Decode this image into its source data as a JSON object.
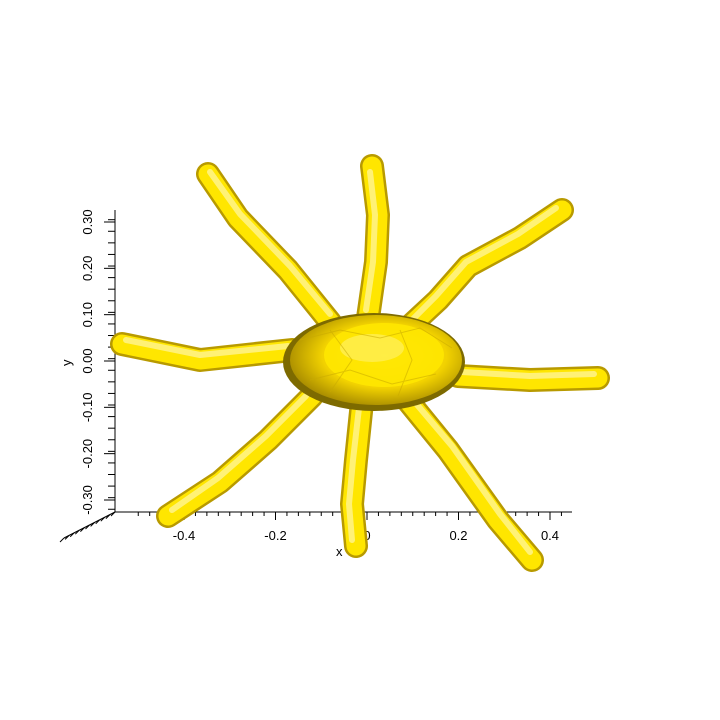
{
  "chart_data": {
    "type": "3d-isosurface",
    "surface_color": "#ffe600",
    "xlabel": "x",
    "ylabel": "y",
    "x_ticks": [
      -0.4,
      -0.2,
      0,
      0.2,
      0.4
    ],
    "x_tick_labels": [
      "-0.4",
      "-0.2",
      "0",
      "0.2",
      "0.4"
    ],
    "xlim": [
      -0.5,
      0.45
    ],
    "y_ticks": [
      -0.3,
      -0.2,
      -0.1,
      0.0,
      0.1,
      0.2,
      0.3
    ],
    "y_tick_labels": [
      "-0.30",
      "-0.20",
      "-0.10",
      "0.00",
      "0.10",
      "0.20",
      "0.30"
    ],
    "ylim": [
      -0.32,
      0.32
    ]
  }
}
